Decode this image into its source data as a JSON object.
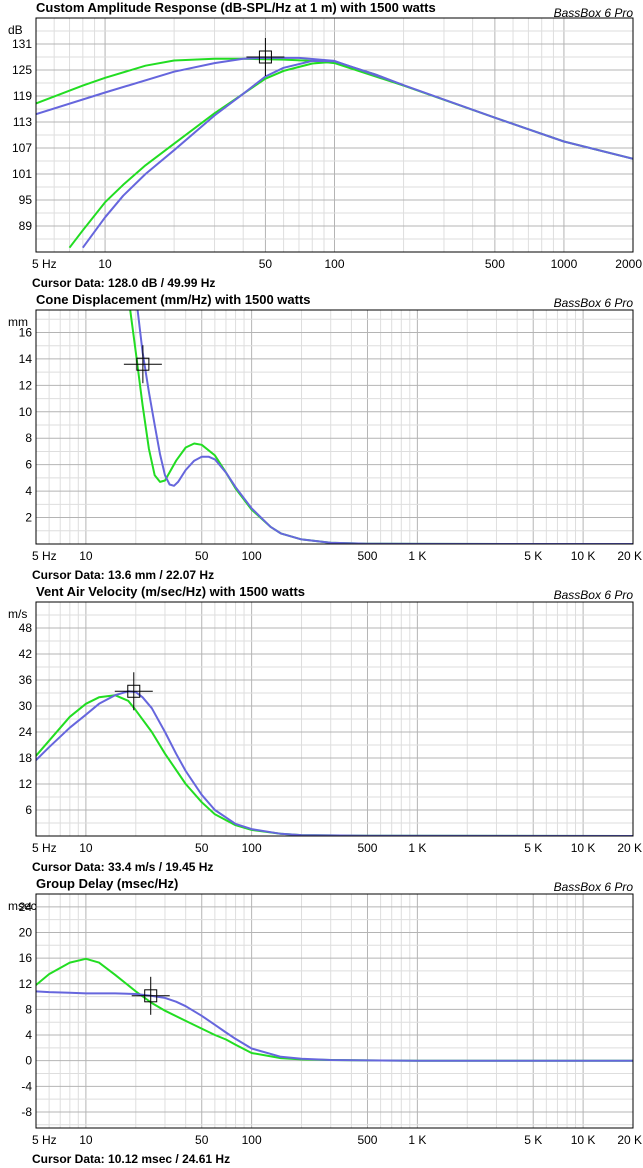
{
  "colors": {
    "green": "#22dd22",
    "blue": "#6666dd",
    "grid_major": "#b4b4b4",
    "grid_minor": "#dedede",
    "frame": "#000000"
  },
  "chart_data": [
    {
      "type": "line",
      "title": "Custom Amplitude Response (dB-SPL/Hz at 1 m) with 1500 watts",
      "brand": "BassBox 6 Pro",
      "ylabel": "dB",
      "xscale": "log",
      "xlim": [
        5,
        2000
      ],
      "ylim": [
        83,
        137
      ],
      "x_ticks": [
        5,
        10,
        50,
        100,
        500,
        1000,
        2000
      ],
      "x_tick_labels": [
        "5 Hz",
        "10",
        "50",
        "100",
        "500",
        "1000",
        "2000"
      ],
      "y_ticks": [
        89,
        95,
        101,
        107,
        113,
        119,
        125,
        131
      ],
      "grid": true,
      "cursor_point": [
        49.99,
        128.0
      ],
      "cursor_text": "Cursor Data:  128.0 dB / 49.99 Hz",
      "series": [
        {
          "color": "green",
          "x": [
            5,
            8,
            10,
            15,
            20,
            30,
            40,
            50,
            60,
            80,
            100,
            200,
            500,
            1000,
            2000
          ],
          "y": [
            117.3,
            121.4,
            123.2,
            126.0,
            127.2,
            127.6,
            127.6,
            127.5,
            127.4,
            127.1,
            126.6,
            121.4,
            114.0,
            108.5,
            104.5
          ]
        },
        {
          "color": "blue",
          "x": [
            5,
            10,
            20,
            30,
            40,
            50,
            70,
            100,
            200,
            500,
            1000,
            2000
          ],
          "y": [
            114.8,
            119.8,
            124.6,
            126.6,
            127.6,
            127.8,
            127.8,
            127.1,
            121.5,
            114.0,
            108.5,
            104.5
          ]
        },
        {
          "color": "green",
          "x": [
            7,
            8,
            10,
            12,
            15,
            20,
            30,
            40,
            50,
            60,
            80,
            100,
            150,
            200
          ],
          "y": [
            84.0,
            88.0,
            94.5,
            98.5,
            103.0,
            108.0,
            115.0,
            119.5,
            123.0,
            124.8,
            126.5,
            126.9,
            124.0,
            121.4
          ]
        },
        {
          "color": "blue",
          "x": [
            8,
            10,
            12,
            15,
            20,
            30,
            40,
            50,
            60,
            80,
            100,
            150,
            200
          ],
          "y": [
            84.0,
            91.0,
            96.0,
            101.0,
            106.5,
            114.5,
            119.5,
            123.5,
            125.5,
            127.1,
            127.0,
            124.0,
            121.5
          ]
        }
      ]
    },
    {
      "type": "line",
      "title": "Cone Displacement (mm/Hz) with 1500 watts",
      "brand": "BassBox 6 Pro",
      "ylabel": "mm",
      "xscale": "log",
      "xlim": [
        5,
        20000
      ],
      "ylim": [
        0,
        17.7
      ],
      "x_ticks": [
        5,
        10,
        50,
        100,
        500,
        1000,
        5000,
        10000,
        20000
      ],
      "x_tick_labels": [
        "5 Hz",
        "10",
        "50",
        "100",
        "500",
        "1 K",
        "5 K",
        "10 K",
        "20 K"
      ],
      "y_ticks": [
        2,
        4,
        6,
        8,
        10,
        12,
        14,
        16
      ],
      "grid": true,
      "cursor_point": [
        22.07,
        13.6
      ],
      "cursor_text": "Cursor Data:  13.6 mm / 22.07 Hz",
      "series": [
        {
          "color": "green",
          "x": [
            18.5,
            20,
            22,
            24,
            26,
            28,
            30,
            35,
            40,
            45,
            50,
            60,
            70,
            80,
            100,
            130,
            150,
            200,
            300,
            500,
            1000,
            20000
          ],
          "y": [
            17.7,
            14.5,
            10.5,
            7.2,
            5.2,
            4.7,
            4.8,
            6.3,
            7.3,
            7.6,
            7.5,
            6.7,
            5.4,
            4.2,
            2.6,
            1.3,
            0.8,
            0.35,
            0.1,
            0.02,
            0.01,
            0
          ]
        },
        {
          "color": "blue",
          "x": [
            20.5,
            22,
            24,
            26,
            28,
            30,
            32,
            34,
            36,
            40,
            45,
            50,
            55,
            60,
            70,
            80,
            100,
            130,
            150,
            200,
            300,
            500,
            1000,
            20000
          ],
          "y": [
            17.7,
            14.5,
            11.5,
            9.0,
            6.8,
            5.2,
            4.5,
            4.4,
            4.7,
            5.6,
            6.3,
            6.6,
            6.6,
            6.4,
            5.4,
            4.3,
            2.7,
            1.3,
            0.8,
            0.35,
            0.1,
            0.02,
            0.01,
            0
          ]
        }
      ]
    },
    {
      "type": "line",
      "title": "Vent Air Velocity (m/sec/Hz) with 1500 watts",
      "brand": "BassBox 6 Pro",
      "ylabel": "m/s",
      "xscale": "log",
      "xlim": [
        5,
        20000
      ],
      "ylim": [
        0,
        54
      ],
      "x_ticks": [
        5,
        10,
        50,
        100,
        500,
        1000,
        5000,
        10000,
        20000
      ],
      "x_tick_labels": [
        "5 Hz",
        "10",
        "50",
        "100",
        "500",
        "1 K",
        "5 K",
        "10 K",
        "20 K"
      ],
      "y_ticks": [
        6,
        12,
        18,
        24,
        30,
        36,
        42,
        48
      ],
      "grid": true,
      "cursor_point": [
        19.45,
        33.4
      ],
      "cursor_text": "Cursor Data:  33.4 m/s / 19.45 Hz",
      "series": [
        {
          "color": "green",
          "x": [
            5,
            6,
            8,
            10,
            12,
            15,
            18,
            20,
            25,
            30,
            40,
            50,
            60,
            80,
            100,
            150,
            200,
            500,
            20000
          ],
          "y": [
            18.5,
            22.0,
            27.5,
            30.5,
            32.0,
            32.5,
            31.2,
            29.0,
            24.0,
            19.0,
            12.0,
            7.8,
            5.0,
            2.5,
            1.4,
            0.5,
            0.2,
            0.05,
            0
          ]
        },
        {
          "color": "blue",
          "x": [
            5,
            6,
            8,
            10,
            12,
            15,
            18,
            20,
            22,
            25,
            30,
            35,
            40,
            50,
            60,
            80,
            100,
            150,
            200,
            500,
            20000
          ],
          "y": [
            17.5,
            20.5,
            25.0,
            28.0,
            30.5,
            32.5,
            33.4,
            33.2,
            32.0,
            29.5,
            24.0,
            19.0,
            15.0,
            9.5,
            6.0,
            2.8,
            1.6,
            0.5,
            0.2,
            0.05,
            0
          ]
        }
      ]
    },
    {
      "type": "line",
      "title": "Group Delay (msec/Hz)",
      "brand": "BassBox 6 Pro",
      "ylabel": "msec",
      "xscale": "log",
      "xlim": [
        5,
        20000
      ],
      "ylim": [
        -10.5,
        26
      ],
      "x_ticks": [
        5,
        10,
        50,
        100,
        500,
        1000,
        5000,
        10000,
        20000
      ],
      "x_tick_labels": [
        "5 Hz",
        "10",
        "50",
        "100",
        "500",
        "1 K",
        "5 K",
        "10 K",
        "20 K"
      ],
      "y_ticks": [
        -8,
        -4,
        0,
        4,
        8,
        12,
        16,
        20,
        24
      ],
      "grid": true,
      "cursor_point": [
        24.61,
        10.12
      ],
      "cursor_text": "Cursor Data:  10.12 msec / 24.61 Hz",
      "series": [
        {
          "color": "green",
          "x": [
            5,
            6,
            8,
            10,
            12,
            15,
            20,
            25,
            30,
            40,
            50,
            60,
            70,
            80,
            100,
            150,
            200,
            300,
            500,
            1000,
            20000
          ],
          "y": [
            11.8,
            13.5,
            15.3,
            15.9,
            15.3,
            13.4,
            10.8,
            9.0,
            7.8,
            6.2,
            5.0,
            4.0,
            3.3,
            2.5,
            1.2,
            0.4,
            0.2,
            0.1,
            0.05,
            0,
            0
          ]
        },
        {
          "color": "blue",
          "x": [
            5,
            6,
            8,
            10,
            15,
            20,
            25,
            30,
            35,
            40,
            50,
            60,
            70,
            80,
            100,
            150,
            200,
            300,
            500,
            1000,
            20000
          ],
          "y": [
            10.8,
            10.7,
            10.6,
            10.5,
            10.5,
            10.4,
            10.1,
            9.8,
            9.2,
            8.5,
            7.0,
            5.6,
            4.4,
            3.4,
            1.9,
            0.6,
            0.3,
            0.1,
            0.05,
            0,
            0
          ]
        }
      ]
    }
  ]
}
